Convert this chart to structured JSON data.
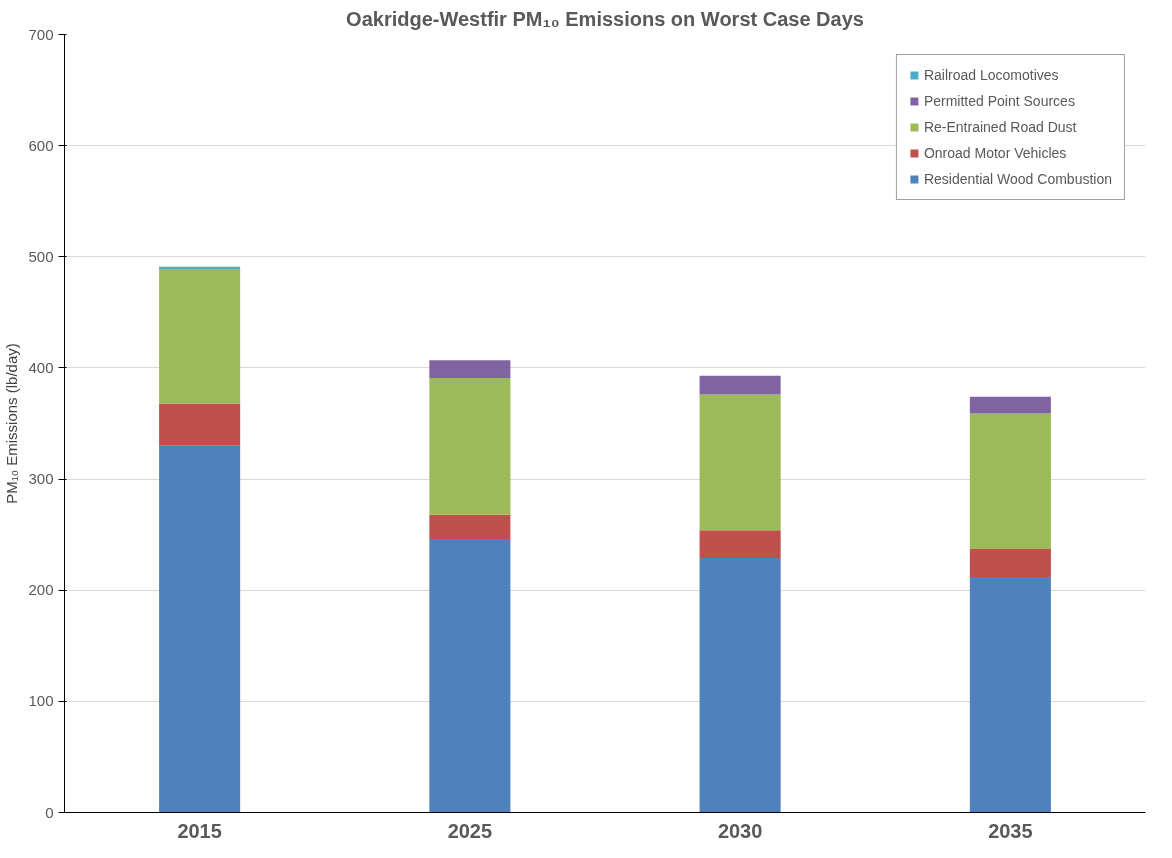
{
  "chart_data": {
    "type": "bar",
    "stacked": true,
    "title": "Oakridge-Westfir PM₁₀ Emissions on Worst Case Days",
    "ylabel": "PM₁₀ Emissions (lb/day)",
    "categories": [
      "2015",
      "2025",
      "2030",
      "2035"
    ],
    "series": [
      {
        "name": "Residential Wood Combustion",
        "color": "#4f81bd",
        "values": [
          330,
          246,
          229,
          212
        ]
      },
      {
        "name": "Onroad Motor Vehicles",
        "color": "#c0504d",
        "values": [
          38,
          22,
          25,
          25
        ]
      },
      {
        "name": "Re-Entrained Road Dust",
        "color": "#9bbb59",
        "values": [
          121,
          123,
          122,
          122
        ]
      },
      {
        "name": "Permitted Point Sources",
        "color": "#8064a2",
        "values": [
          0,
          16,
          17,
          15
        ]
      },
      {
        "name": "Railroad Locomotives",
        "color": "#4bacc6",
        "values": [
          2,
          0,
          0,
          0
        ]
      }
    ],
    "ylim": [
      0,
      700
    ],
    "yticks": [
      0,
      100,
      200,
      300,
      400,
      500,
      600,
      700
    ],
    "grid": "y",
    "legend": "top right"
  }
}
